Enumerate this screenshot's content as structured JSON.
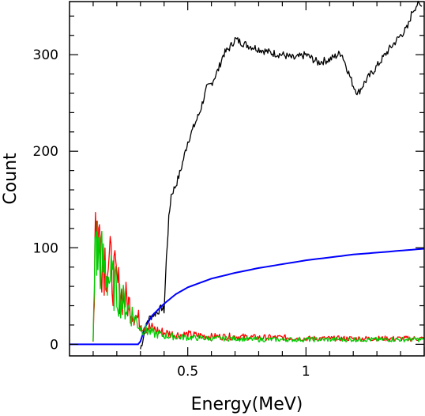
{
  "chart_data": {
    "type": "line",
    "title": "",
    "xlabel": "Energy(MeV)",
    "ylabel": "Count",
    "xlim": [
      0.0,
      1.5
    ],
    "ylim": [
      -12,
      355
    ],
    "x_ticks": [
      {
        "value": 0.5,
        "label": "0.5"
      },
      {
        "value": 1.0,
        "label": "1"
      }
    ],
    "y_ticks": [
      {
        "value": 0,
        "label": "0"
      },
      {
        "value": 100,
        "label": "100"
      },
      {
        "value": 200,
        "label": "200"
      },
      {
        "value": 300,
        "label": "300"
      }
    ],
    "grid": false,
    "legend": "none",
    "series": [
      {
        "color": "#000000",
        "x": [
          0.3,
          0.31,
          0.32,
          0.33,
          0.35,
          0.37,
          0.39,
          0.4,
          0.41,
          0.42,
          0.43,
          0.45,
          0.47,
          0.49,
          0.5,
          0.52,
          0.55,
          0.58,
          0.6,
          0.63,
          0.65,
          0.68,
          0.7,
          0.75,
          0.8,
          0.85,
          0.9,
          0.95,
          1.0,
          1.05,
          1.1,
          1.15,
          1.2,
          1.22,
          1.25,
          1.3,
          1.35,
          1.4,
          1.43,
          1.45,
          1.47,
          1.49
        ],
        "y": [
          -5,
          5,
          15,
          25,
          30,
          33,
          38,
          35,
          90,
          130,
          155,
          165,
          180,
          200,
          210,
          222,
          240,
          265,
          270,
          285,
          300,
          308,
          316,
          310,
          306,
          302,
          300,
          296,
          300,
          292,
          295,
          302,
          268,
          260,
          272,
          288,
          305,
          320,
          328,
          345,
          352,
          350
        ]
      },
      {
        "color": "#0000ff",
        "x": [
          0.0,
          0.29,
          0.3,
          0.32,
          0.35,
          0.4,
          0.45,
          0.5,
          0.6,
          0.7,
          0.8,
          0.9,
          1.0,
          1.1,
          1.2,
          1.3,
          1.4,
          1.5
        ],
        "y": [
          0,
          0,
          3,
          18,
          30,
          42,
          52,
          59,
          68,
          74,
          79,
          83,
          87,
          90,
          93,
          95,
          97,
          99
        ]
      },
      {
        "color": "#ff0000",
        "x": [
          0.1,
          0.105,
          0.11,
          0.115,
          0.12,
          0.13,
          0.14,
          0.15,
          0.16,
          0.18,
          0.2,
          0.22,
          0.25,
          0.28,
          0.3,
          0.33,
          0.36,
          0.4,
          0.45,
          0.5,
          0.6,
          0.7,
          0.8,
          0.9,
          1.0,
          1.1,
          1.2,
          1.3,
          1.4,
          1.5
        ],
        "y": [
          5,
          60,
          165,
          125,
          115,
          105,
          95,
          90,
          85,
          75,
          62,
          52,
          42,
          30,
          22,
          18,
          15,
          12,
          10,
          10,
          8,
          8,
          7,
          7,
          6,
          6,
          6,
          6,
          6,
          6
        ]
      },
      {
        "color": "#00cc00",
        "x": [
          0.1,
          0.105,
          0.11,
          0.115,
          0.12,
          0.13,
          0.14,
          0.15,
          0.16,
          0.18,
          0.2,
          0.22,
          0.25,
          0.28,
          0.3,
          0.33,
          0.36,
          0.4,
          0.45,
          0.5,
          0.6,
          0.7,
          0.8,
          0.9,
          1.0,
          1.1,
          1.2,
          1.3,
          1.4,
          1.5
        ],
        "y": [
          5,
          55,
          120,
          100,
          95,
          90,
          82,
          78,
          72,
          64,
          55,
          46,
          36,
          26,
          18,
          14,
          11,
          9,
          8,
          7,
          6,
          6,
          5,
          5,
          5,
          5,
          5,
          5,
          5,
          5
        ]
      }
    ]
  }
}
